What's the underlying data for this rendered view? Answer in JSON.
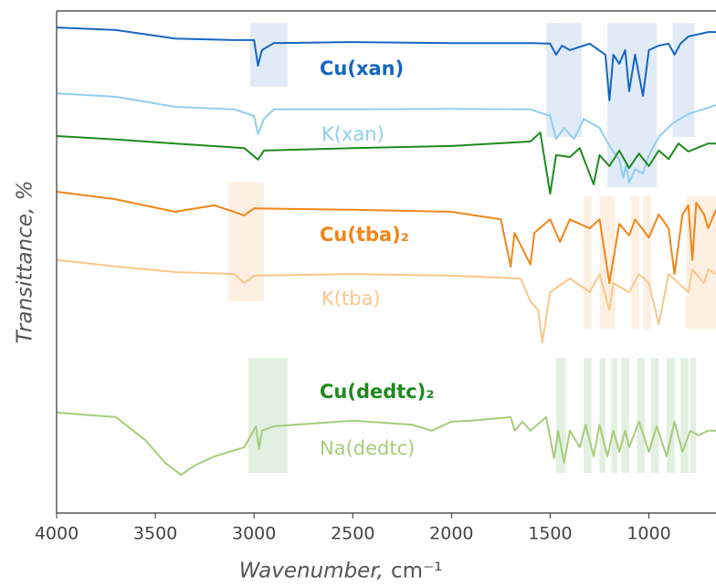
{
  "chart_data": {
    "type": "line",
    "x_label": "Wavenumber,",
    "x_label_unit": "cm⁻¹",
    "y_label": "Transittance, %",
    "xlim": [
      4000,
      660
    ],
    "ylim": [
      0,
      100
    ],
    "xticks": [
      4000,
      3500,
      3000,
      2500,
      2000,
      1500,
      1000
    ],
    "series": [
      {
        "name": "Cu(xan)",
        "color": "#1565c0",
        "bold": true,
        "x": [
          4000,
          3700,
          3400,
          3100,
          3000,
          2980,
          2960,
          2900,
          2500,
          2000,
          1600,
          1500,
          1470,
          1440,
          1400,
          1300,
          1220,
          1200,
          1180,
          1150,
          1120,
          1100,
          1070,
          1030,
          1000,
          950,
          900,
          870,
          840,
          800,
          700,
          660
        ],
        "values": [
          96.7,
          96.2,
          94.5,
          94.2,
          94.2,
          89.1,
          92.2,
          93.6,
          93.8,
          93.6,
          93.6,
          93.5,
          91.3,
          93.1,
          92.2,
          93.5,
          91.3,
          82.2,
          91.3,
          89.5,
          92.2,
          84.0,
          91.3,
          83.1,
          92.2,
          93.1,
          93.5,
          91.3,
          93.5,
          94.9,
          95.8,
          95.8
        ]
      },
      {
        "name": "K(xan)",
        "color": "#92cdee",
        "bold": false,
        "x": [
          4000,
          3700,
          3400,
          3100,
          3000,
          2980,
          2950,
          2900,
          2500,
          2000,
          1600,
          1500,
          1470,
          1430,
          1380,
          1330,
          1250,
          1200,
          1150,
          1130,
          1115,
          1100,
          1070,
          1030,
          1000,
          950,
          880,
          800,
          700,
          660
        ],
        "values": [
          83.6,
          82.9,
          80.9,
          80.4,
          79.1,
          75.5,
          78.5,
          80.4,
          80.4,
          80.5,
          80.4,
          79.1,
          74.5,
          76.7,
          74.5,
          78.5,
          76.7,
          73.1,
          70.4,
          66.7,
          69.5,
          65.8,
          68.5,
          67.6,
          71.3,
          74.9,
          77.6,
          79.5,
          80.7,
          81.3
        ]
      },
      {
        "name": "Cu(tba)₂",
        "color": "#f0861a",
        "bold": true,
        "x": [
          4000,
          3700,
          3400,
          3200,
          3050,
          3000,
          2500,
          2000,
          1750,
          1700,
          1680,
          1600,
          1580,
          1500,
          1450,
          1400,
          1300,
          1250,
          1200,
          1150,
          1100,
          1070,
          1000,
          950,
          900,
          870,
          830,
          800,
          780,
          760,
          720,
          700,
          660
        ],
        "values": [
          64.0,
          62.5,
          60.0,
          61.3,
          59.3,
          60.7,
          60.4,
          60.0,
          58.5,
          49.1,
          55.8,
          49.5,
          55.8,
          58.5,
          54.0,
          58.5,
          56.7,
          58.5,
          45.8,
          57.6,
          55.3,
          58.5,
          54.9,
          59.5,
          56.7,
          47.6,
          59.5,
          61.3,
          50.4,
          61.8,
          59.5,
          56.7,
          60.4
        ]
      },
      {
        "name": "K(tba)",
        "color": "#fbc78a",
        "bold": false,
        "x": [
          4000,
          3700,
          3400,
          3100,
          3050,
          3000,
          2500,
          2000,
          1650,
          1600,
          1560,
          1540,
          1500,
          1400,
          1300,
          1250,
          1200,
          1180,
          1100,
          1050,
          1000,
          950,
          900,
          800,
          780,
          720,
          700,
          660
        ],
        "values": [
          50.4,
          49.1,
          48.0,
          47.6,
          45.8,
          47.3,
          47.6,
          47.3,
          46.7,
          42.2,
          40.4,
          34.0,
          44.0,
          46.7,
          44.0,
          47.6,
          40.4,
          45.8,
          44.0,
          47.6,
          45.8,
          37.6,
          47.6,
          44.0,
          48.5,
          45.8,
          48.5,
          47.6
        ]
      },
      {
        "name": "Cu(dedtc)₂",
        "color": "#1e8a1e",
        "bold": true,
        "x": [
          4000,
          3700,
          3400,
          3050,
          2980,
          2950,
          2500,
          2000,
          1600,
          1550,
          1500,
          1470,
          1400,
          1350,
          1280,
          1250,
          1200,
          1150,
          1100,
          1050,
          1000,
          950,
          900,
          850,
          800,
          700,
          660
        ],
        "values": [
          75.1,
          74.4,
          73.6,
          72.7,
          70.4,
          72.2,
          72.7,
          73.1,
          74.0,
          75.8,
          63.6,
          71.3,
          70.9,
          72.7,
          65.5,
          71.3,
          69.1,
          72.2,
          68.7,
          71.6,
          69.1,
          72.2,
          70.5,
          73.6,
          72.0,
          73.6,
          73.6
        ]
      },
      {
        "name": "Na(dedtc)",
        "color": "#a6cc7a",
        "bold": false,
        "x": [
          4000,
          3700,
          3550,
          3450,
          3370,
          3300,
          3200,
          3050,
          2990,
          2975,
          2960,
          2900,
          2500,
          2200,
          2100,
          2000,
          1900,
          1700,
          1680,
          1640,
          1600,
          1520,
          1480,
          1460,
          1430,
          1400,
          1350,
          1320,
          1280,
          1250,
          1210,
          1180,
          1150,
          1120,
          1100,
          1050,
          1000,
          960,
          910,
          870,
          830,
          790,
          750,
          700,
          660
        ],
        "values": [
          20.0,
          19.1,
          14.5,
          10.0,
          7.6,
          9.5,
          11.3,
          13.1,
          17.3,
          12.7,
          16.4,
          17.3,
          18.4,
          17.6,
          16.4,
          18.2,
          18.4,
          19.1,
          16.4,
          18.2,
          16.4,
          19.1,
          10.9,
          16.4,
          10.0,
          16.4,
          13.1,
          17.6,
          11.3,
          17.6,
          11.3,
          16.4,
          12.2,
          16.4,
          13.1,
          18.2,
          12.2,
          17.3,
          11.3,
          18.2,
          12.2,
          16.4,
          15.5,
          16.4,
          16.4
        ]
      }
    ],
    "highlights": [
      {
        "x": [
          3020,
          2830
        ],
        "y": [
          84.9,
          97.6
        ],
        "color": "#1565c0"
      },
      {
        "x": [
          1520,
          1340
        ],
        "y": [
          74.9,
          97.6
        ],
        "color": "#1565c0"
      },
      {
        "x": [
          1210,
          960
        ],
        "y": [
          64.9,
          97.6
        ],
        "color": "#1565c0"
      },
      {
        "x": [
          880,
          770
        ],
        "y": [
          74.9,
          97.6
        ],
        "color": "#1565c0"
      },
      {
        "x": [
          3130,
          2950
        ],
        "y": [
          42.2,
          65.8
        ],
        "color": "#f0861a"
      },
      {
        "x": [
          1330,
          1290
        ],
        "y": [
          36.7,
          63.1
        ],
        "color": "#f0861a"
      },
      {
        "x": [
          1250,
          1170
        ],
        "y": [
          36.7,
          63.1
        ],
        "color": "#f0861a"
      },
      {
        "x": [
          1090,
          1050
        ],
        "y": [
          36.7,
          63.1
        ],
        "color": "#f0861a"
      },
      {
        "x": [
          1030,
          990
        ],
        "y": [
          36.7,
          63.1
        ],
        "color": "#f0861a"
      },
      {
        "x": [
          810,
          660
        ],
        "y": [
          36.7,
          63.1
        ],
        "color": "#f0861a"
      },
      {
        "x": [
          3030,
          2830
        ],
        "y": [
          8.0,
          30.9
        ],
        "color": "#1e8a1e"
      },
      {
        "x": [
          1470,
          1420
        ],
        "y": [
          8.0,
          30.9
        ],
        "color": "#1e8a1e"
      },
      {
        "x": [
          1330,
          1290
        ],
        "y": [
          8.0,
          30.9
        ],
        "color": "#1e8a1e"
      },
      {
        "x": [
          1250,
          1220
        ],
        "y": [
          8.0,
          30.9
        ],
        "color": "#1e8a1e"
      },
      {
        "x": [
          1190,
          1160
        ],
        "y": [
          8.0,
          30.9
        ],
        "color": "#1e8a1e"
      },
      {
        "x": [
          1140,
          1100
        ],
        "y": [
          8.0,
          30.9
        ],
        "color": "#1e8a1e"
      },
      {
        "x": [
          1060,
          1020
        ],
        "y": [
          8.0,
          30.9
        ],
        "color": "#1e8a1e"
      },
      {
        "x": [
          990,
          950
        ],
        "y": [
          8.0,
          30.9
        ],
        "color": "#1e8a1e"
      },
      {
        "x": [
          910,
          870
        ],
        "y": [
          8.0,
          30.9
        ],
        "color": "#1e8a1e"
      },
      {
        "x": [
          840,
          800
        ],
        "y": [
          8.0,
          30.9
        ],
        "color": "#1e8a1e"
      },
      {
        "x": [
          790,
          760
        ],
        "y": [
          8.0,
          30.9
        ],
        "color": "#1e8a1e"
      }
    ]
  }
}
